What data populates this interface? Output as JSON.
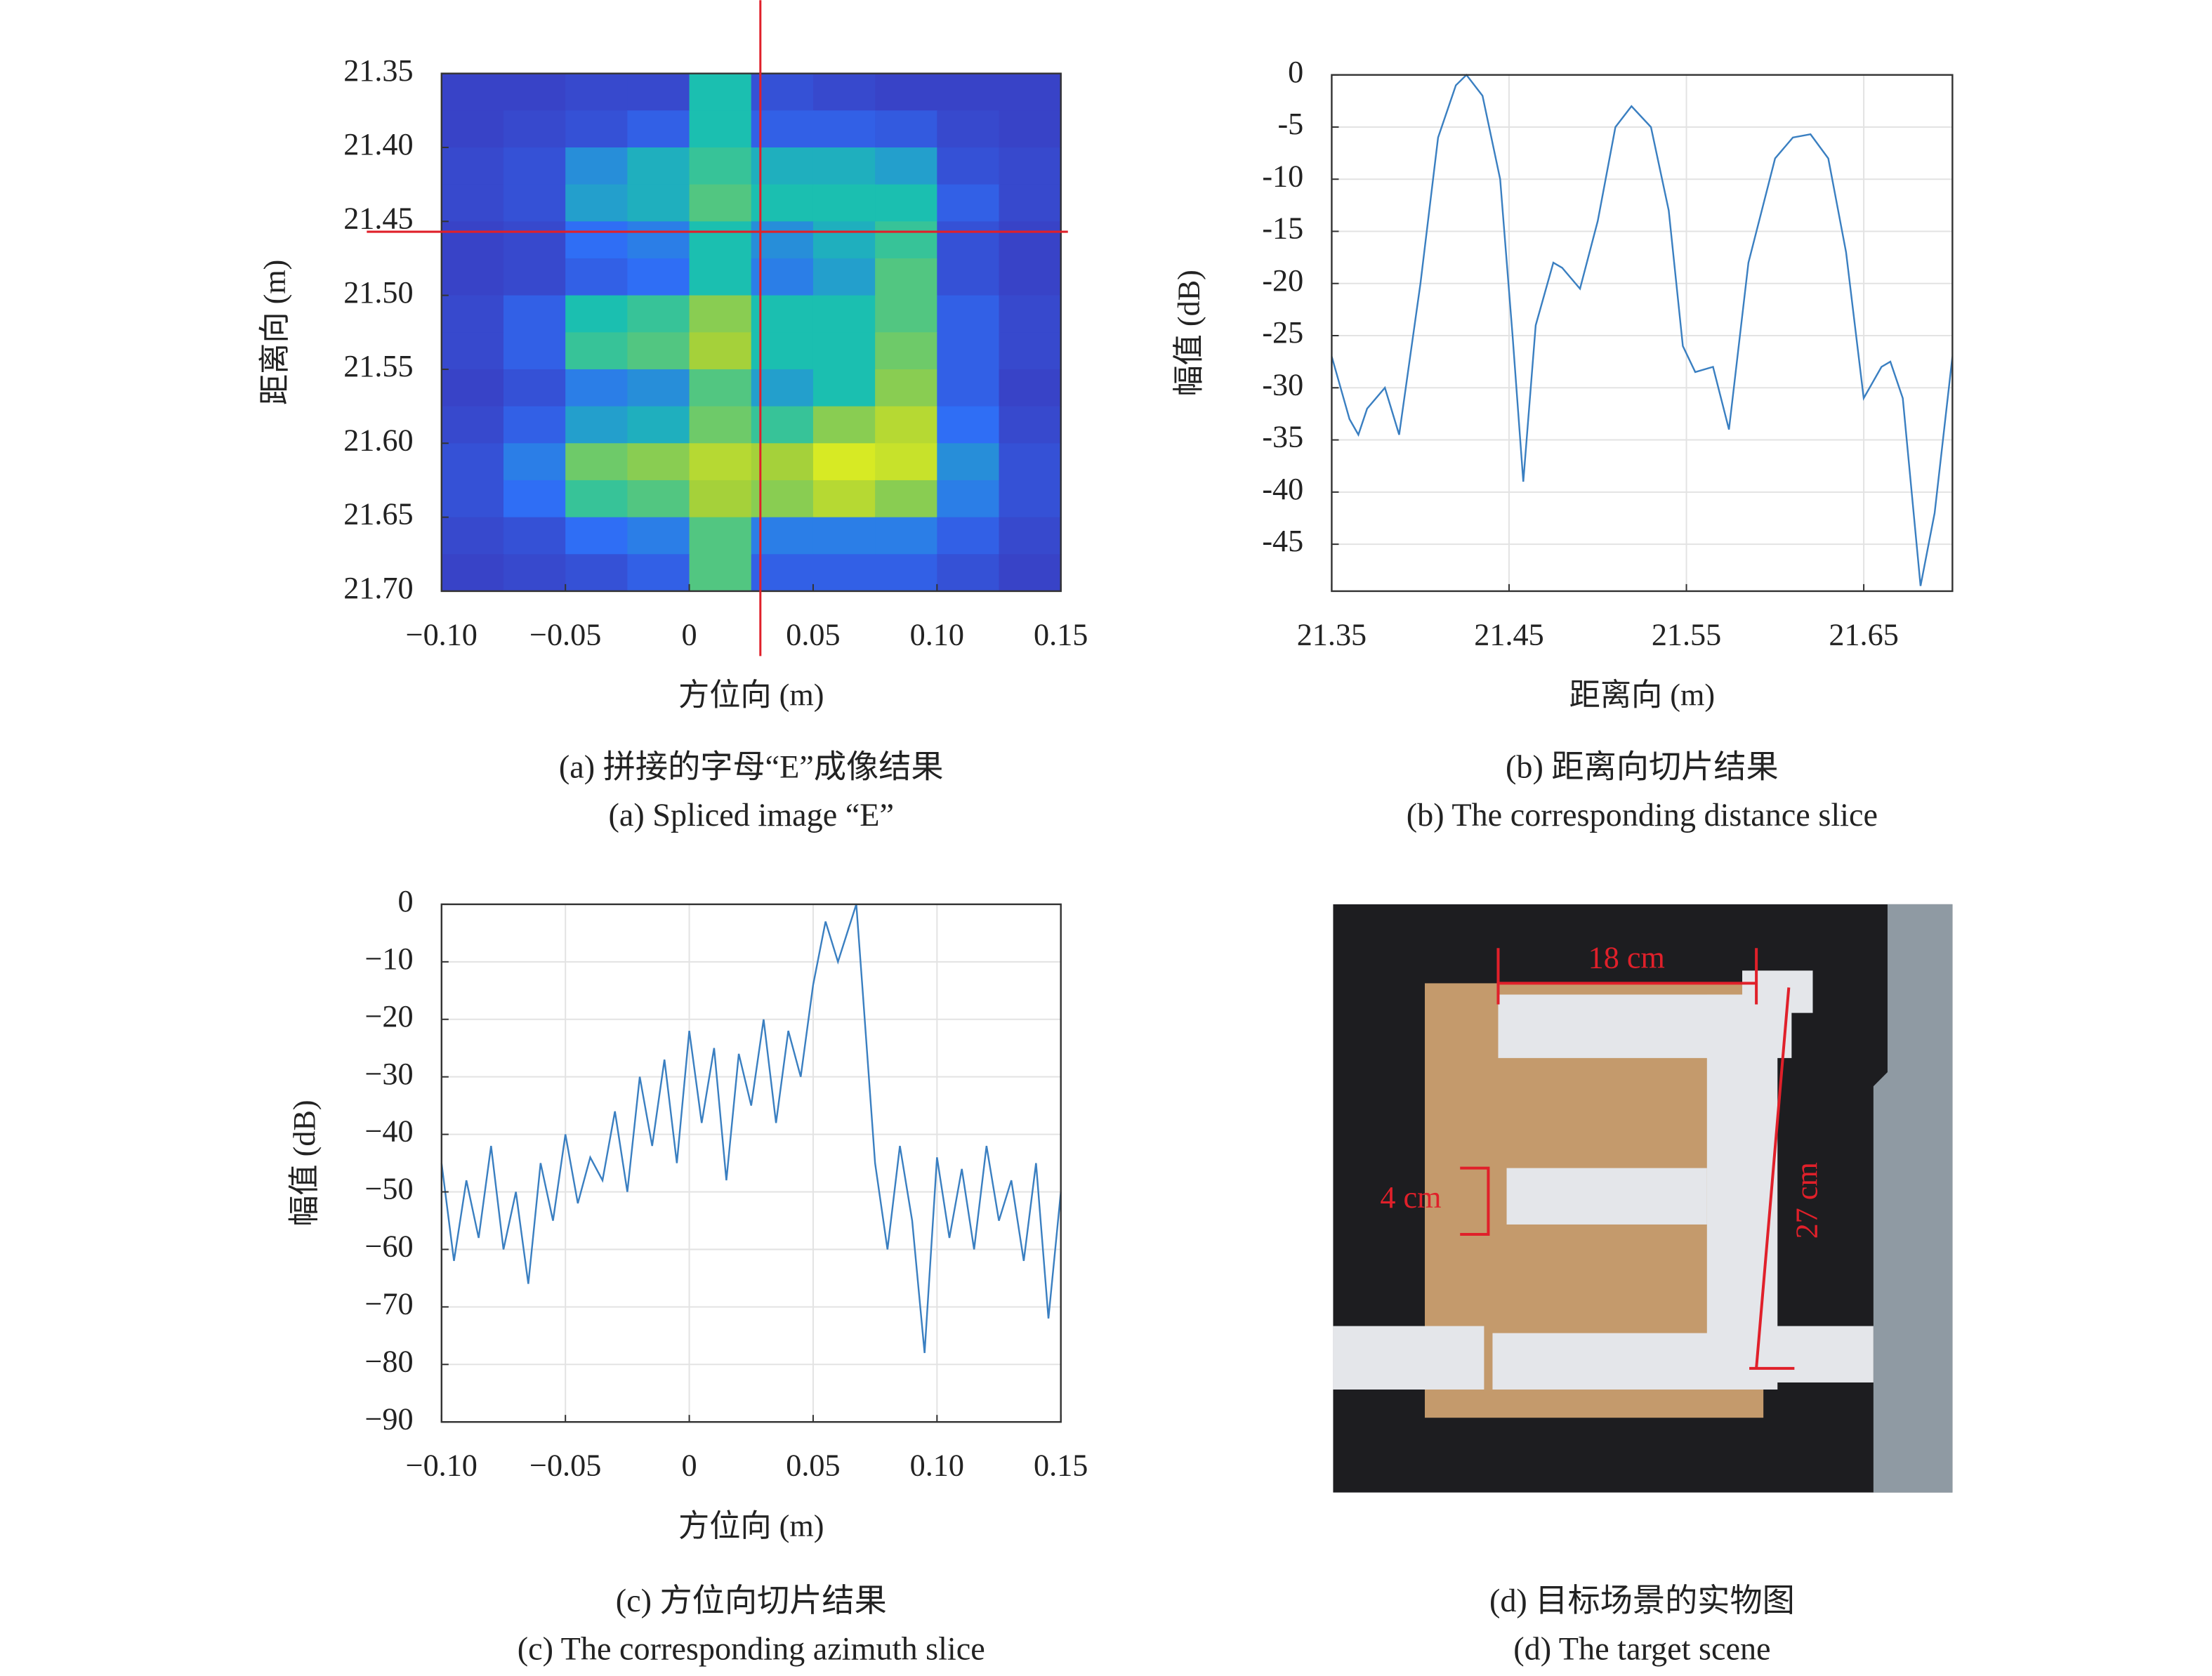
{
  "chart_data": [
    {
      "type": "heatmap",
      "title": "(a) 拼接的字母“E”成像结果",
      "subtitle": "(a) Spliced image “E”",
      "x_label": "方位向 (m)",
      "y_label": "距离向 (m)",
      "xlim": [
        -0.1,
        0.15
      ],
      "ylim": [
        21.35,
        21.7
      ],
      "xticks": [
        {
          "value": -0.1,
          "label": "−0.10"
        },
        {
          "value": -0.05,
          "label": "−0.05"
        },
        0,
        0.05,
        {
          "value": 0.1,
          "label": "0.10"
        },
        0.15
      ],
      "yticks": [
        21.35,
        {
          "value": 21.4,
          "label": "21.40"
        },
        21.45,
        {
          "value": 21.5,
          "label": "21.50"
        },
        21.55,
        {
          "value": 21.6,
          "label": "21.60"
        },
        21.65,
        {
          "value": 21.7,
          "label": "21.70"
        }
      ],
      "colormap": [
        "#3e26a8",
        "#2f6ef5",
        "#1bbfb0",
        "#a5d13a",
        "#f9fb15"
      ],
      "z": [
        [
          0.1,
          0.1,
          0.12,
          0.12,
          0.5,
          0.15,
          0.12,
          0.1,
          0.1,
          0.1
        ],
        [
          0.1,
          0.12,
          0.15,
          0.2,
          0.5,
          0.2,
          0.2,
          0.18,
          0.12,
          0.1
        ],
        [
          0.12,
          0.15,
          0.35,
          0.45,
          0.55,
          0.45,
          0.45,
          0.4,
          0.15,
          0.12
        ],
        [
          0.12,
          0.15,
          0.4,
          0.45,
          0.6,
          0.5,
          0.5,
          0.5,
          0.2,
          0.12
        ],
        [
          0.1,
          0.12,
          0.25,
          0.3,
          0.5,
          0.35,
          0.45,
          0.55,
          0.15,
          0.1
        ],
        [
          0.1,
          0.12,
          0.2,
          0.25,
          0.5,
          0.3,
          0.4,
          0.6,
          0.15,
          0.1
        ],
        [
          0.12,
          0.2,
          0.5,
          0.55,
          0.7,
          0.5,
          0.5,
          0.6,
          0.2,
          0.12
        ],
        [
          0.12,
          0.2,
          0.55,
          0.6,
          0.75,
          0.5,
          0.5,
          0.65,
          0.2,
          0.12
        ],
        [
          0.1,
          0.15,
          0.3,
          0.35,
          0.6,
          0.4,
          0.5,
          0.7,
          0.2,
          0.1
        ],
        [
          0.12,
          0.2,
          0.4,
          0.45,
          0.65,
          0.55,
          0.7,
          0.8,
          0.25,
          0.12
        ],
        [
          0.15,
          0.3,
          0.65,
          0.7,
          0.8,
          0.75,
          0.9,
          0.85,
          0.35,
          0.15
        ],
        [
          0.15,
          0.25,
          0.55,
          0.6,
          0.75,
          0.7,
          0.8,
          0.7,
          0.3,
          0.15
        ],
        [
          0.12,
          0.15,
          0.25,
          0.3,
          0.6,
          0.3,
          0.3,
          0.3,
          0.2,
          0.12
        ],
        [
          0.1,
          0.12,
          0.15,
          0.2,
          0.6,
          0.2,
          0.2,
          0.2,
          0.15,
          0.1
        ]
      ],
      "crosshair": {
        "x": 0.0287,
        "y": 21.457,
        "color": "#e0202a"
      }
    },
    {
      "type": "line",
      "title": "(b) 距离向切片结果",
      "subtitle": "(b) The corresponding distance slice",
      "x_label": "距离向 (m)",
      "y_label": "幅值 (dB)",
      "grid": true,
      "color": "#3a7fc1",
      "xlim": [
        21.35,
        21.7
      ],
      "ylim": [
        -49.5,
        0
      ],
      "xticks": [
        21.35,
        21.45,
        21.55,
        21.65
      ],
      "yticks": [
        0,
        -5,
        -10,
        -15,
        -20,
        -25,
        -30,
        -35,
        -40,
        -45
      ],
      "x": [
        21.35,
        21.36,
        21.365,
        21.37,
        21.38,
        21.388,
        21.4,
        21.41,
        21.42,
        21.426,
        21.435,
        21.445,
        21.452,
        21.458,
        21.465,
        21.475,
        21.48,
        21.49,
        21.5,
        21.51,
        21.519,
        21.53,
        21.54,
        21.548,
        21.555,
        21.565,
        21.574,
        21.585,
        21.6,
        21.61,
        21.62,
        21.63,
        21.64,
        21.65,
        21.66,
        21.665,
        21.672,
        21.682,
        21.69,
        21.7
      ],
      "values": [
        -27,
        -33,
        -34.5,
        -32,
        -30,
        -34.5,
        -20,
        -6,
        -1,
        0,
        -2,
        -10,
        -25,
        -39,
        -24,
        -18,
        -18.5,
        -20.5,
        -14,
        -5,
        -3,
        -5,
        -13,
        -26,
        -28.5,
        -28,
        -34,
        -18,
        -8,
        -6,
        -5.7,
        -8,
        -17,
        -31,
        -28,
        -27.5,
        -31,
        -49,
        -42,
        -27
      ]
    },
    {
      "type": "line",
      "title": "(c) 方位向切片结果",
      "subtitle": "(c) The corresponding azimuth slice",
      "x_label": "方位向 (m)",
      "y_label": "幅值 (dB)",
      "grid": true,
      "color": "#3a7fc1",
      "xlim": [
        -0.1,
        0.15
      ],
      "ylim": [
        -90,
        0
      ],
      "xticks": [
        {
          "value": -0.1,
          "label": "−0.10"
        },
        {
          "value": -0.05,
          "label": "−0.05"
        },
        0,
        0.05,
        {
          "value": 0.1,
          "label": "0.10"
        },
        0.15
      ],
      "yticks": [
        0,
        {
          "value": -10,
          "label": "−10"
        },
        {
          "value": -20,
          "label": "−20"
        },
        {
          "value": -30,
          "label": "−30"
        },
        {
          "value": -40,
          "label": "−40"
        },
        {
          "value": -50,
          "label": "−50"
        },
        {
          "value": -60,
          "label": "−60"
        },
        {
          "value": -70,
          "label": "−70"
        },
        {
          "value": -80,
          "label": "−80"
        },
        {
          "value": -90,
          "label": "−90"
        }
      ],
      "x": [
        -0.1,
        -0.095,
        -0.09,
        -0.085,
        -0.08,
        -0.075,
        -0.07,
        -0.065,
        -0.06,
        -0.055,
        -0.05,
        -0.045,
        -0.04,
        -0.035,
        -0.03,
        -0.025,
        -0.02,
        -0.015,
        -0.01,
        -0.005,
        0,
        0.005,
        0.01,
        0.015,
        0.02,
        0.025,
        0.03,
        0.035,
        0.04,
        0.045,
        0.05,
        0.055,
        0.06,
        0.0674,
        0.07,
        0.075,
        0.08,
        0.085,
        0.09,
        0.095,
        0.1,
        0.105,
        0.11,
        0.115,
        0.12,
        0.125,
        0.13,
        0.135,
        0.14,
        0.145,
        0.15
      ],
      "values": [
        -45,
        -62,
        -48,
        -58,
        -42,
        -60,
        -50,
        -66,
        -45,
        -55,
        -40,
        -52,
        -44,
        -48,
        -36,
        -50,
        -30,
        -42,
        -27,
        -45,
        -22,
        -38,
        -25,
        -48,
        -26,
        -35,
        -20,
        -38,
        -22,
        -30,
        -14,
        -3,
        -10,
        0,
        -15,
        -45,
        -60,
        -42,
        -55,
        -78,
        -44,
        -58,
        -46,
        -60,
        -42,
        -55,
        -48,
        -62,
        -45,
        -72,
        -50
      ]
    }
  ],
  "photo": {
    "title": "(d) 目标场景的实物图",
    "subtitle": "(d) The target scene",
    "labels": [
      "18 cm",
      "4 cm",
      "27 cm"
    ]
  }
}
